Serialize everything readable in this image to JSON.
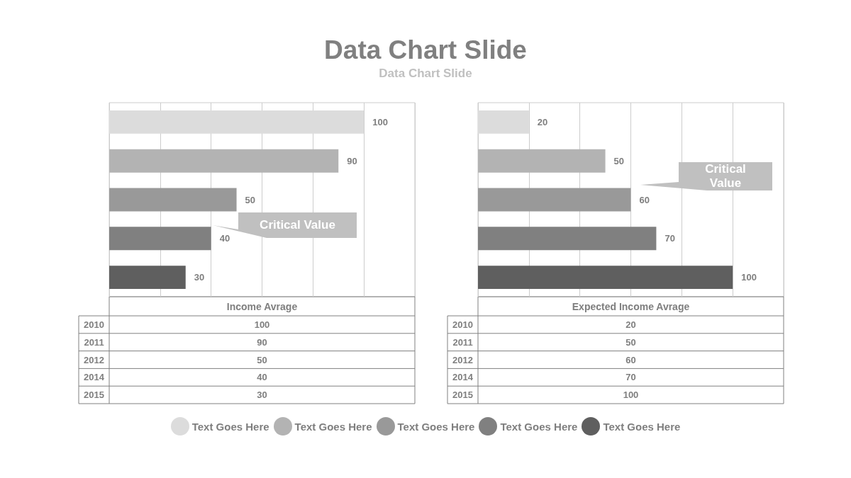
{
  "chart_data": [
    {
      "type": "bar",
      "orientation": "horizontal",
      "title": "Data Chart Slide",
      "subtitle": "Data Chart Slide",
      "xlabel": "Income Avrage",
      "categories": [
        null,
        null,
        null,
        null,
        null
      ],
      "values": [
        100,
        90,
        50,
        40,
        30
      ],
      "colors": [
        "#dcdcdc",
        "#b3b3b3",
        "#999999",
        "#808080",
        "#5f5f5f"
      ],
      "xlim": [
        0,
        120
      ],
      "xticks": [
        {
          "value": 0,
          "label": null
        },
        {
          "value": 20,
          "label": null
        },
        {
          "value": 40,
          "label": null
        },
        {
          "value": 60,
          "label": null
        },
        {
          "value": 80,
          "label": null
        },
        {
          "value": 100,
          "label": null
        },
        {
          "value": 120,
          "label": null
        }
      ],
      "grid": "x",
      "data_labels": true,
      "annotations": [
        "Critical Value",
        "2010",
        "2011",
        "2012",
        "2014",
        "2015",
        "100",
        "90",
        "50",
        "40",
        "30",
        "Text Goes Here",
        "Text Goes Here",
        "Text Goes Here",
        "Text Goes Here",
        "Text Goes Here"
      ]
    },
    {
      "type": "bar",
      "orientation": "horizontal",
      "xlabel": "Expected Income Avrage",
      "categories": [
        null,
        null,
        null,
        null,
        null
      ],
      "values": [
        20,
        50,
        60,
        70,
        100
      ],
      "colors": [
        "#dcdcdc",
        "#b3b3b3",
        "#999999",
        "#808080",
        "#5f5f5f"
      ],
      "xlim": [
        0,
        120
      ],
      "xticks": [
        {
          "value": 0,
          "label": null
        },
        {
          "value": 20,
          "label": null
        },
        {
          "value": 40,
          "label": null
        },
        {
          "value": 60,
          "label": null
        },
        {
          "value": 80,
          "label": null
        },
        {
          "value": 100,
          "label": null
        },
        {
          "value": 120,
          "label": null
        }
      ],
      "grid": "x",
      "data_labels": true,
      "annotations": [
        "Critical Value",
        "2010",
        "2011",
        "2012",
        "2014",
        "2015",
        "20",
        "50",
        "60",
        "70",
        "100"
      ]
    }
  ]
}
